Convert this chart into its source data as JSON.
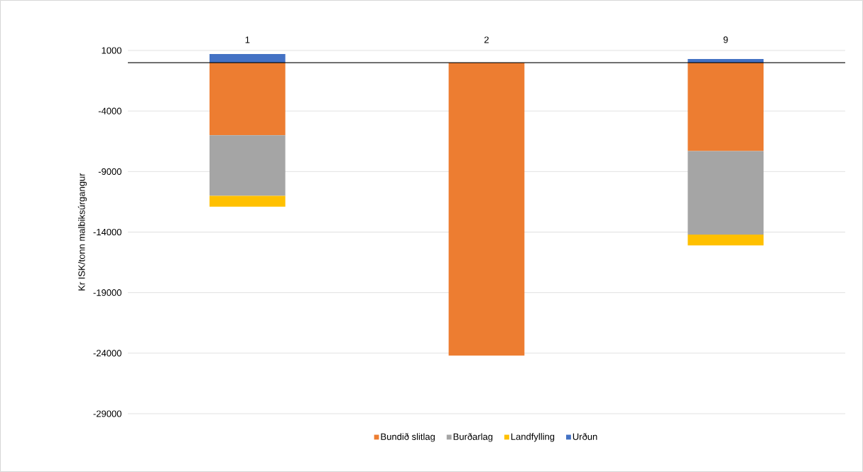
{
  "chart_data": {
    "type": "bar",
    "stacked": true,
    "ylabel": "Kr ISK/tonn malbiksúrgangur",
    "categories": [
      "1",
      "2",
      "9"
    ],
    "series": [
      {
        "name": "Bundið slitlag",
        "color": "#ed7d31",
        "values": [
          -6000,
          -24200,
          -7300
        ]
      },
      {
        "name": "Burðarlag",
        "color": "#a5a5a5",
        "values": [
          -5000,
          null,
          -6900
        ]
      },
      {
        "name": "Landfylling",
        "color": "#ffc000",
        "values": [
          -900,
          null,
          -900
        ]
      },
      {
        "name": "Urðun",
        "color": "#4472c4",
        "values": [
          700,
          null,
          300
        ]
      }
    ],
    "ylim": [
      -29000,
      1000
    ],
    "yticks": [
      1000,
      -4000,
      -9000,
      -14000,
      -19000,
      -24000,
      -29000
    ],
    "grid": "y",
    "legend": "bottom"
  }
}
